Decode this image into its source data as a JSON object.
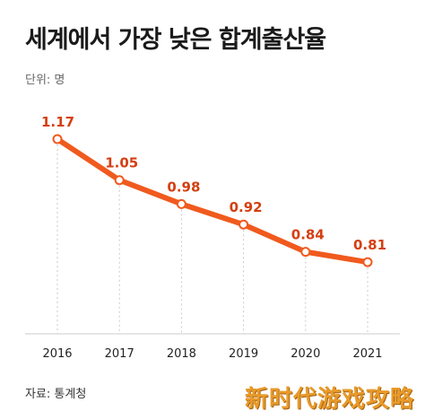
{
  "chart_data": {
    "type": "line",
    "title": "세계에서 가장 낮은 합계출산율",
    "unit_label": "단위: 명",
    "source": "자료: 통계청",
    "categories": [
      "2016",
      "2017",
      "2018",
      "2019",
      "2020",
      "2021"
    ],
    "series": [
      {
        "values": [
          1.17,
          1.05,
          0.98,
          0.92,
          0.84,
          0.81
        ]
      }
    ],
    "data_labels": [
      "1.17",
      "1.05",
      "0.98",
      "0.92",
      "0.84",
      "0.81"
    ],
    "ylim": [
      0.6,
      1.22
    ],
    "grid": "vertical dotted",
    "line_color": "#f05a1e",
    "label_color": "#d43f10",
    "marker_fill": "#ffffff"
  },
  "watermark": "新时代游戏攻略"
}
